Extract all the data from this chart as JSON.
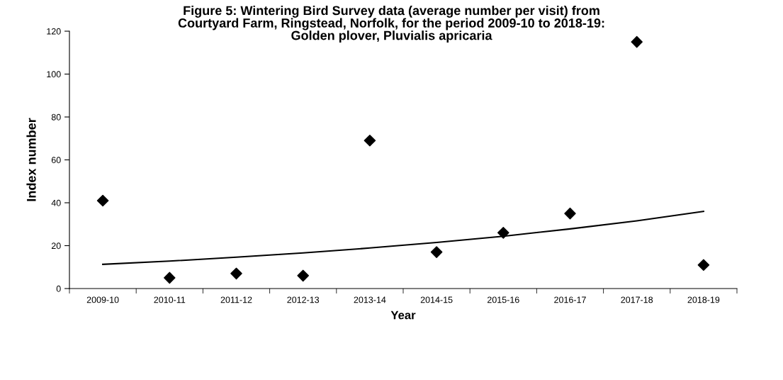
{
  "chart_data": {
    "type": "scatter",
    "title": "Figure 5: Wintering Bird Survey data (average number per visit) from\nCourtyard Farm, Ringstead, Norfolk, for the period 2009-10 to 2018-19:\nGolden plover, Pluvialis apricaria",
    "xlabel": "Year",
    "ylabel": "Index number",
    "categories": [
      "2009-10",
      "2010-11",
      "2011-12",
      "2012-13",
      "2013-14",
      "2014-15",
      "2015-16",
      "2016-17",
      "2017-18",
      "2018-19"
    ],
    "series": [
      {
        "color": "#000000",
        "marker": "diamond",
        "values": [
          41,
          5,
          7,
          6,
          69,
          17,
          26,
          35,
          115,
          11
        ]
      },
      {
        "type": "line",
        "color": "#000000",
        "marker": "none",
        "line_style": "solid",
        "values": [
          11.3,
          12.8,
          14.6,
          16.6,
          18.9,
          21.5,
          24.4,
          27.8,
          31.6,
          36
        ]
      }
    ],
    "ylim": [
      0,
      120
    ],
    "yticks": [
      0,
      20,
      40,
      60,
      80,
      100,
      120
    ],
    "grid": false
  }
}
